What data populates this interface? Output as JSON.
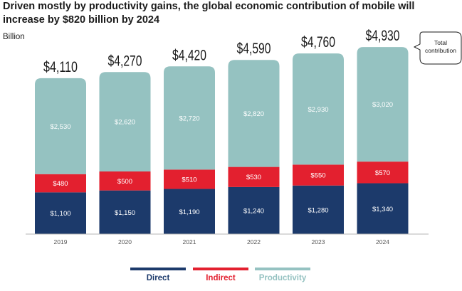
{
  "title": "Driven mostly by productivity gains, the global economic contribution of mobile will increase by $820 billion by 2024",
  "unit_label": "Billion",
  "callout": {
    "line1": "Total",
    "line2": "contribution"
  },
  "colors": {
    "direct": "#1c3a6b",
    "indirect": "#e3202f",
    "productivity": "#95c2c1"
  },
  "chart_data": {
    "type": "bar",
    "stacked": true,
    "categories": [
      "2019",
      "2020",
      "2021",
      "2022",
      "2023",
      "2024"
    ],
    "series": [
      {
        "name": "Direct",
        "values": [
          1100,
          1150,
          1190,
          1240,
          1280,
          1340
        ],
        "labels": [
          "$1,100",
          "$1,150",
          "$1,190",
          "$1,240",
          "$1,280",
          "$1,340"
        ]
      },
      {
        "name": "Indirect",
        "values": [
          480,
          500,
          510,
          530,
          550,
          570
        ],
        "labels": [
          "$480",
          "$500",
          "$510",
          "$530",
          "$550",
          "$570"
        ]
      },
      {
        "name": "Productivity",
        "values": [
          2530,
          2620,
          2720,
          2820,
          2930,
          3020
        ],
        "labels": [
          "$2,530",
          "$2,620",
          "$2,720",
          "$2,820",
          "$2,930",
          "$3,020"
        ]
      }
    ],
    "totals": [
      4110,
      4270,
      4420,
      4590,
      4760,
      4930
    ],
    "total_labels": [
      "$4,110",
      "$4,270",
      "$4,420",
      "$4,590",
      "$4,760",
      "$4,930"
    ],
    "legend_position": "bottom",
    "grid": false
  }
}
